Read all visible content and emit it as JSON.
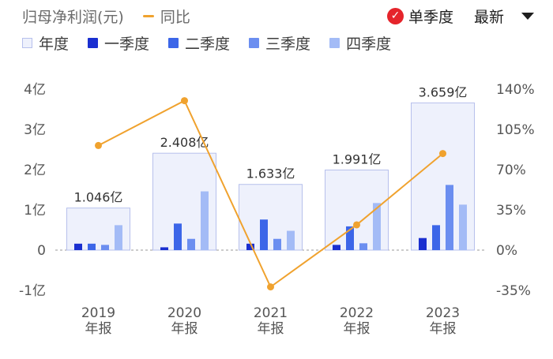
{
  "legend": {
    "series_main": "归母净利润(元)",
    "series_yoy": "同比",
    "year": "年度",
    "q1": "一季度",
    "q2": "二季度",
    "q3": "三季度",
    "q4": "四季度"
  },
  "controls": {
    "single_quarter": "单季度",
    "sort": "最新",
    "check_icon": "check-icon",
    "caret_icon": "caret-down-icon"
  },
  "colors": {
    "year_fill": "#eef1fc",
    "year_border": "#b7c0ec",
    "q1": "#1a2fd0",
    "q2": "#3c66e8",
    "q3": "#6b8ef0",
    "q4": "#a3bbf6",
    "yoy_line": "#f0a22e",
    "accent_red": "#e5242b"
  },
  "chart_data": {
    "type": "bar",
    "categories": [
      "2019\n年报",
      "2020\n年报",
      "2021\n年报",
      "2022\n年报",
      "2023\n年报"
    ],
    "y_ticks": [
      "4亿",
      "3亿",
      "2亿",
      "1亿",
      "0",
      "-1亿"
    ],
    "y2_ticks": [
      "140%",
      "105%",
      "70%",
      "35%",
      "0%",
      "-35%"
    ],
    "ylim": [
      -1,
      4
    ],
    "y2lim": [
      -35,
      140
    ],
    "series": [
      {
        "name": "年度",
        "values": [
          1.046,
          2.408,
          1.633,
          1.991,
          3.659
        ]
      },
      {
        "name": "一季度",
        "values": [
          0.16,
          0.07,
          0.16,
          0.13,
          0.3
        ]
      },
      {
        "name": "二季度",
        "values": [
          0.16,
          0.66,
          0.76,
          0.59,
          0.62
        ]
      },
      {
        "name": "三季度",
        "values": [
          0.13,
          0.28,
          0.28,
          0.17,
          1.62
        ]
      },
      {
        "name": "四季度",
        "values": [
          0.62,
          1.46,
          0.48,
          1.17,
          1.13
        ]
      }
    ],
    "total_labels": [
      "1.046亿",
      "2.408亿",
      "1.633亿",
      "1.991亿",
      "3.659亿"
    ],
    "yoy": {
      "name": "同比",
      "values": [
        91,
        130,
        -32,
        22,
        84
      ]
    },
    "grid": false,
    "legend_position": "top-left"
  }
}
